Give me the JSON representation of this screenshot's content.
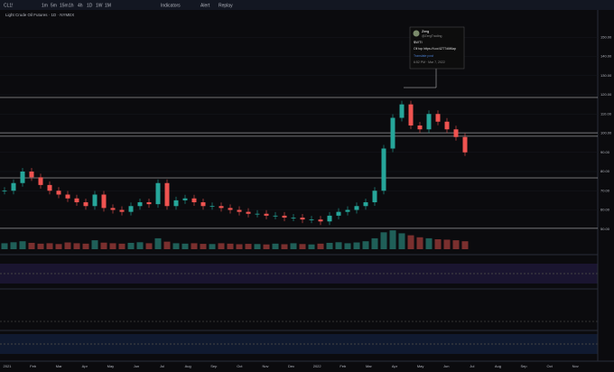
{
  "toolbar": {
    "symbol": "CL1!",
    "intervals": [
      "1m",
      "5m",
      "15m",
      "1h",
      "4h",
      "1D",
      "1W",
      "1M"
    ],
    "indicators": "Indicators",
    "alert": "Alert",
    "replay": "Replay"
  },
  "legend": {
    "title": "Light Crude Oil Futures · 1D · NYMEX"
  },
  "chart": {
    "ylim": [
      40,
      160
    ],
    "yticks": [
      {
        "value": 50,
        "label": "50.00"
      },
      {
        "value": 60,
        "label": "60.00"
      },
      {
        "value": 70,
        "label": "70.00"
      },
      {
        "value": 80,
        "label": "80.00"
      },
      {
        "value": 90,
        "label": "90.00"
      },
      {
        "value": 100,
        "label": "100.00"
      },
      {
        "value": 110,
        "label": "110.00"
      },
      {
        "value": 120,
        "label": "120.00"
      },
      {
        "value": 130,
        "label": "130.00"
      },
      {
        "value": 140,
        "label": "140.00"
      },
      {
        "value": 150,
        "label": "150.00"
      }
    ],
    "closes": [
      70,
      74,
      80,
      77,
      73,
      70,
      68,
      66,
      64,
      62,
      68,
      61,
      60,
      59,
      62,
      64,
      63,
      74,
      62,
      65,
      66,
      64,
      62,
      62,
      61,
      60,
      59,
      58,
      58,
      57,
      57,
      56,
      56,
      55,
      55,
      54,
      57,
      59,
      60,
      62,
      64,
      70,
      92,
      108,
      115,
      104,
      102,
      110,
      106,
      102,
      98,
      90
    ],
    "volumes": [
      30,
      35,
      40,
      32,
      28,
      30,
      26,
      34,
      30,
      28,
      45,
      33,
      30,
      28,
      32,
      35,
      30,
      55,
      38,
      30,
      28,
      30,
      27,
      26,
      30,
      28,
      25,
      27,
      26,
      24,
      28,
      25,
      30,
      26,
      24,
      28,
      32,
      35,
      30,
      34,
      40,
      55,
      85,
      95,
      80,
      70,
      60,
      55,
      50,
      48,
      45,
      40
    ],
    "levels": [
      118.6,
      100.2,
      98.4,
      76.7,
      50.4
    ],
    "time_labels": [
      "2021",
      "Feb",
      "Mar",
      "Apr",
      "May",
      "Jun",
      "Jul",
      "Aug",
      "Sep",
      "Oct",
      "Nov",
      "Dec",
      "2022",
      "Feb",
      "Mar",
      "Apr",
      "May",
      "Jun",
      "Jul",
      "Aug",
      "Sep",
      "Oct",
      "Nov"
    ]
  },
  "tweet": {
    "name": "Zerg",
    "handle": "@ZergTrading",
    "cashtag": "$WTI",
    "text": "Oil top https://t.co/4ZT7dM6ap",
    "link": "Translate post",
    "time": "6:52 PM · Mar 7, 2022"
  }
}
